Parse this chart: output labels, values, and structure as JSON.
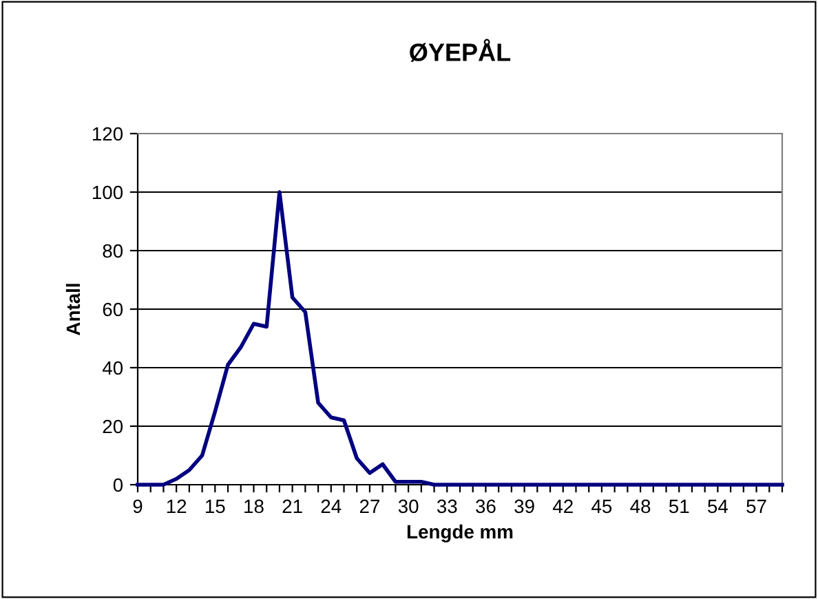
{
  "chart_data": {
    "type": "line",
    "title": "ØYEPÅL",
    "xlabel": "Lengde mm",
    "ylabel": "Antall",
    "categories": [
      "9",
      null,
      null,
      "12",
      null,
      null,
      "15",
      null,
      null,
      "18",
      null,
      null,
      "21",
      null,
      null,
      "24",
      null,
      null,
      "27",
      null,
      null,
      "30",
      null,
      null,
      "33",
      null,
      null,
      "36",
      null,
      null,
      "39",
      null,
      null,
      "42",
      null,
      null,
      "45",
      null,
      null,
      "48",
      null,
      null,
      "51",
      null,
      null,
      "54",
      null,
      null,
      "57",
      null,
      null
    ],
    "series": [
      {
        "color": "#000080",
        "values": [
          0,
          0,
          0,
          2,
          5,
          10,
          25,
          41,
          47,
          55,
          54,
          100,
          64,
          59,
          28,
          23,
          22,
          9,
          4,
          7,
          1,
          1,
          1,
          0,
          0,
          0,
          0,
          0,
          0,
          0,
          0,
          0,
          0,
          0,
          0,
          0,
          0,
          0,
          0,
          0,
          0,
          0,
          0,
          0,
          0,
          0,
          0,
          0,
          0,
          0,
          0
        ]
      }
    ],
    "ylim": [
      0,
      120
    ],
    "yticks": [
      0,
      20,
      40,
      60,
      80,
      100,
      120
    ],
    "grid": "y",
    "legend": false,
    "marker": "none",
    "line_style": "solid"
  }
}
